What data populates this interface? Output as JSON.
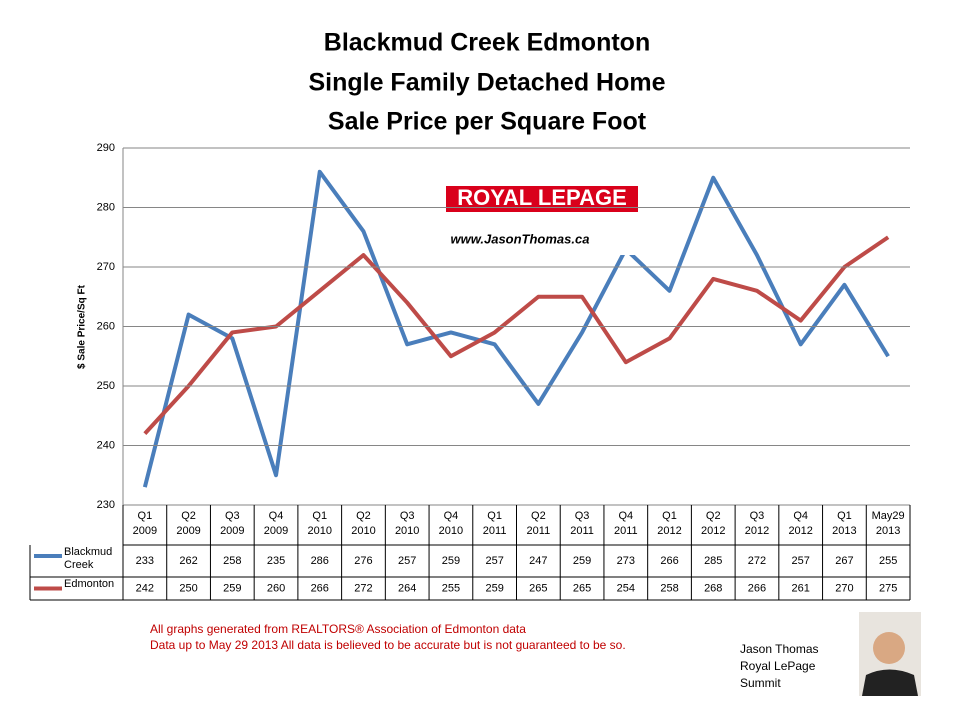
{
  "chart_data": {
    "type": "line",
    "title": [
      "Blackmud Creek Edmonton",
      "Single Family Detached Home",
      "Sale Price per Square Foot"
    ],
    "y_label": "$ Sale Price/Sq Ft",
    "categories": [
      [
        "Q1",
        "2009"
      ],
      [
        "Q2",
        "2009"
      ],
      [
        "Q3",
        "2009"
      ],
      [
        "Q4",
        "2009"
      ],
      [
        "Q1",
        "2010"
      ],
      [
        "Q2",
        "2010"
      ],
      [
        "Q3",
        "2010"
      ],
      [
        "Q4",
        "2010"
      ],
      [
        "Q1",
        "2011"
      ],
      [
        "Q2",
        "2011"
      ],
      [
        "Q3",
        "2011"
      ],
      [
        "Q4",
        "2011"
      ],
      [
        "Q1",
        "2012"
      ],
      [
        "Q2",
        "2012"
      ],
      [
        "Q3",
        "2012"
      ],
      [
        "Q4",
        "2012"
      ],
      [
        "Q1",
        "2013"
      ],
      [
        "May29",
        "2013"
      ]
    ],
    "series": [
      {
        "name": "Blackmud Creek",
        "color": "#4a7ebb",
        "values": [
          233,
          262,
          258,
          235,
          286,
          276,
          257,
          259,
          257,
          247,
          259,
          273,
          266,
          285,
          272,
          257,
          267,
          255
        ]
      },
      {
        "name": "Edmonton",
        "color": "#be4b48",
        "values": [
          242,
          250,
          259,
          260,
          266,
          272,
          264,
          255,
          259,
          265,
          265,
          254,
          258,
          268,
          266,
          261,
          270,
          275
        ]
      }
    ],
    "ylim": [
      230,
      290
    ],
    "yticks": [
      230,
      240,
      250,
      260,
      270,
      280,
      290
    ],
    "grid": true
  },
  "logo": {
    "brand": "ROYAL LEPAGE",
    "url": "www.JasonThomas.ca"
  },
  "notes": [
    "All graphs generated from REALTORS® Association of Edmonton data",
    "Data up to  May 29 2013  All data is believed to be accurate but is not guaranteed to be so."
  ],
  "author": [
    "Jason Thomas",
    "Royal LePage",
    "Summit"
  ]
}
